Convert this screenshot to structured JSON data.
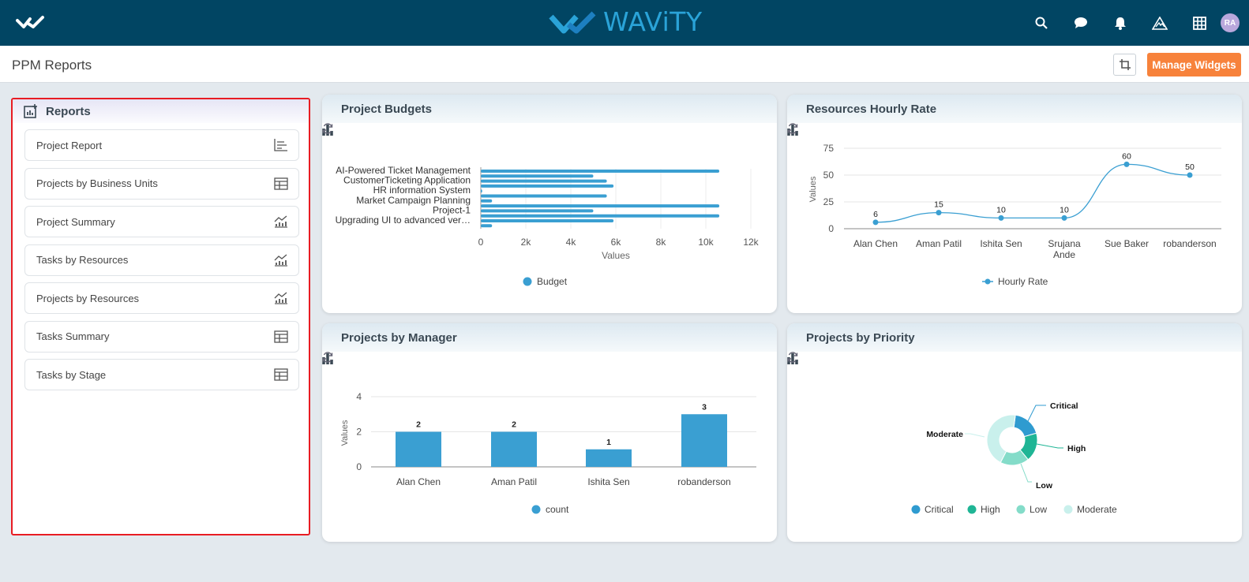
{
  "header": {
    "brand": "WAViTY",
    "avatar_initials": "RA",
    "icons": [
      "search-icon",
      "chat-icon",
      "bell-icon",
      "alert-icon",
      "grid-icon"
    ]
  },
  "subheader": {
    "title": "PPM Reports",
    "manage_label": "Manage Widgets"
  },
  "reports": {
    "title": "Reports",
    "items": [
      {
        "label": "Project Report",
        "icon": "report-list-icon"
      },
      {
        "label": "Projects by Business Units",
        "icon": "table-icon"
      },
      {
        "label": "Project Summary",
        "icon": "chart-icon"
      },
      {
        "label": "Tasks by Resources",
        "icon": "chart-icon"
      },
      {
        "label": "Projects by Resources",
        "icon": "chart-icon"
      },
      {
        "label": "Tasks Summary",
        "icon": "table-icon"
      },
      {
        "label": "Tasks by Stage",
        "icon": "table-icon"
      }
    ]
  },
  "widgets": {
    "budgets_title": "Project Budgets",
    "hourly_title": "Resources Hourly Rate",
    "manager_title": "Projects by Manager",
    "priority_title": "Projects by Priority"
  },
  "colors": {
    "series": "#3a9fd2",
    "accent": "#f7823b",
    "topbar": "#014563"
  },
  "chart_data": [
    {
      "type": "bar",
      "orientation": "horizontal",
      "title": "Project Budgets",
      "categories": [
        "AI-Powered Ticket Management",
        "",
        "CustomerTicketing Application",
        "",
        "HR information System",
        "",
        "Market Campaign Planning",
        "",
        "Project-1",
        "",
        "Upgrading UI to advanced ver…",
        ""
      ],
      "series": [
        {
          "name": "Budget",
          "values": [
            10600,
            5000,
            5600,
            5900,
            60,
            5600,
            500,
            10600,
            5000,
            10600,
            5900,
            500
          ]
        }
      ],
      "xlabel": "Values",
      "xlim": [
        0,
        12000
      ],
      "xticks": [
        "0",
        "2k",
        "4k",
        "6k",
        "8k",
        "10k",
        "12k"
      ],
      "legend": "bottom"
    },
    {
      "type": "line",
      "title": "Resources Hourly Rate",
      "categories": [
        "Alan Chen",
        "Aman Patil",
        "Ishita Sen",
        "Srujana Ande",
        "Sue Baker",
        "robanderson"
      ],
      "series": [
        {
          "name": "Hourly Rate",
          "values": [
            6,
            15,
            10,
            10,
            60,
            50
          ]
        }
      ],
      "ylabel": "Values",
      "ylim": [
        0,
        75
      ],
      "yticks": [
        "0",
        "25",
        "50",
        "75"
      ],
      "legend": "bottom"
    },
    {
      "type": "bar",
      "title": "Projects by Manager",
      "categories": [
        "Alan Chen",
        "Aman Patil",
        "Ishita Sen",
        "robanderson"
      ],
      "series": [
        {
          "name": "count",
          "values": [
            2,
            2,
            1,
            3
          ]
        }
      ],
      "ylabel": "Values",
      "ylim": [
        0,
        4
      ],
      "yticks": [
        "0",
        "2",
        "4"
      ],
      "legend": "bottom"
    },
    {
      "type": "pie",
      "donut": true,
      "title": "Projects by Priority",
      "labels": [
        "Critical",
        "High",
        "Low",
        "Moderate"
      ],
      "values": [
        1,
        1,
        1,
        2.4
      ],
      "colors": [
        "#2f9bd0",
        "#1fb595",
        "#84dcc9",
        "#c9f0ec"
      ],
      "legend": "bottom"
    }
  ]
}
